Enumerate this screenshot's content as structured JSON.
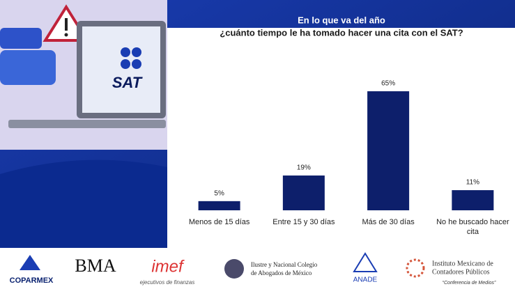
{
  "illustration": {
    "label": "SAT"
  },
  "chart_data": {
    "type": "bar",
    "title": "En lo que va del año",
    "subtitle": "¿cuánto tiempo le ha tomado hacer una cita con el SAT?",
    "categories": [
      "Menos de 15 días",
      "Entre 15 y 30 días",
      "Más de 30 días",
      "No he buscado hacer cita"
    ],
    "values": [
      5,
      19,
      65,
      11
    ],
    "value_labels": [
      "5%",
      "19%",
      "65%",
      "11%"
    ],
    "color": "#0d1f6b"
  },
  "logos": {
    "coparmex": "COPARMEX",
    "bma": "BMA",
    "imef": "imef",
    "imef_sub": "ejecutivos de finanzas",
    "colegio": [
      "Ilustre y Nacional Colegio",
      "de Abogados de México"
    ],
    "anade": "ANADE",
    "instituto": [
      "Instituto Mexicano de",
      "Contadores Públicos"
    ],
    "conferencia": "“Conferencia de Medios”"
  }
}
